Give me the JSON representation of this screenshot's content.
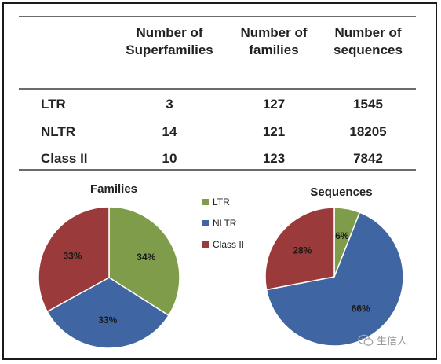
{
  "table": {
    "headers": [
      "",
      "Number of Superfamilies",
      "Number of families",
      "Number of sequences"
    ],
    "header_lines": [
      [
        "Number of",
        "Superfamilies"
      ],
      [
        "Number of",
        "families"
      ],
      [
        "Number of",
        "sequences"
      ]
    ],
    "rows": [
      {
        "label": "LTR",
        "superfamilies": "3",
        "families": "127",
        "sequences": "1545"
      },
      {
        "label": "NLTR",
        "superfamilies": "14",
        "families": "121",
        "sequences": "18205"
      },
      {
        "label": "Class II",
        "superfamilies": "10",
        "families": "123",
        "sequences": "7842"
      }
    ]
  },
  "legend": [
    {
      "label": "LTR",
      "color": "#7f9c4a"
    },
    {
      "label": "NLTR",
      "color": "#3f66a2"
    },
    {
      "label": "Class II",
      "color": "#9b3a3a"
    }
  ],
  "chart_data": [
    {
      "type": "pie",
      "title": "Families",
      "categories": [
        "LTR",
        "NLTR",
        "Class II"
      ],
      "values": [
        34,
        33,
        33
      ],
      "labels": [
        "34%",
        "33%",
        "33%"
      ],
      "colors": [
        "#7f9c4a",
        "#3f66a2",
        "#9b3a3a"
      ]
    },
    {
      "type": "pie",
      "title": "Sequences",
      "categories": [
        "LTR",
        "NLTR",
        "Class II"
      ],
      "values": [
        6,
        66,
        28
      ],
      "labels": [
        "6%",
        "66%",
        "28%"
      ],
      "colors": [
        "#7f9c4a",
        "#3f66a2",
        "#9b3a3a"
      ]
    }
  ],
  "watermark": {
    "text": "生信人",
    "icon": "wechat-icon"
  }
}
